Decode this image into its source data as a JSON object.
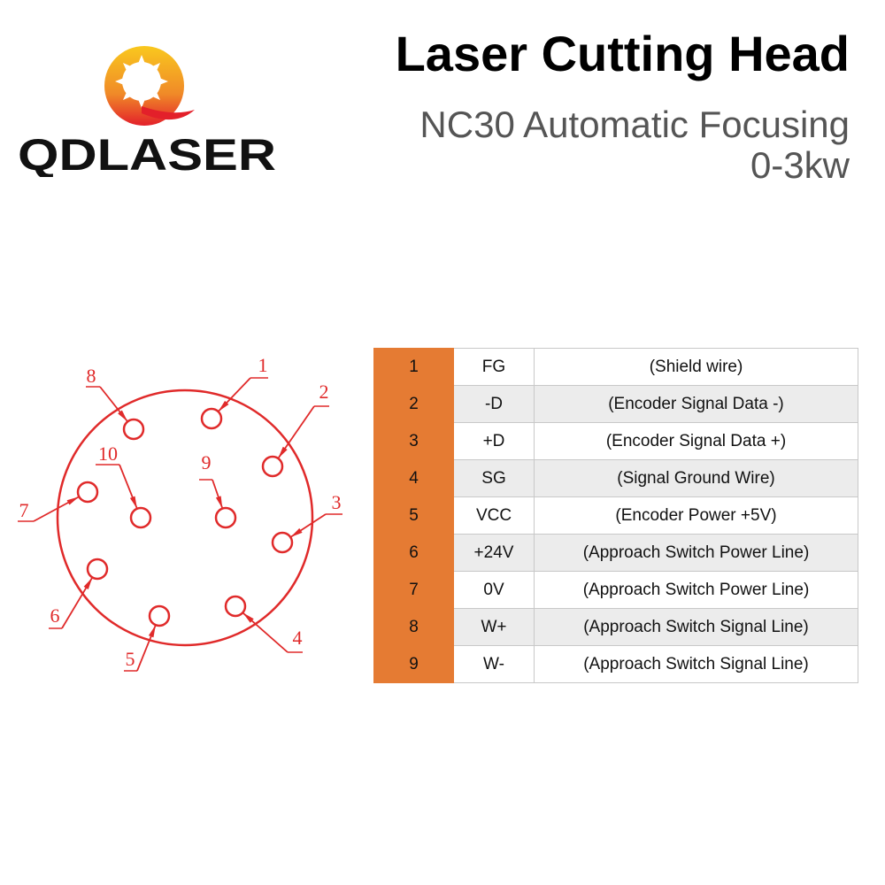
{
  "brand": {
    "name": "QDLASER",
    "colors": {
      "orange": "#f5a623",
      "red": "#e3202a",
      "black": "#111111"
    }
  },
  "header": {
    "title": "Laser Cutting Head",
    "subtitle_line1": "NC30 Automatic Focusing",
    "subtitle_line2": "0-3kw"
  },
  "diagram": {
    "color": "#e02a2a",
    "pins": [
      "1",
      "2",
      "3",
      "4",
      "5",
      "6",
      "7",
      "8",
      "9",
      "10"
    ]
  },
  "table": {
    "accent": "#e57b33",
    "rows": [
      {
        "pin": "1",
        "signal": "FG",
        "description": "(Shield wire)"
      },
      {
        "pin": "2",
        "signal": "-D",
        "description": "(Encoder Signal Data -)"
      },
      {
        "pin": "3",
        "signal": "+D",
        "description": "(Encoder Signal Data +)"
      },
      {
        "pin": "4",
        "signal": "SG",
        "description": "(Signal Ground Wire)"
      },
      {
        "pin": "5",
        "signal": "VCC",
        "description": "(Encoder Power +5V)"
      },
      {
        "pin": "6",
        "signal": "+24V",
        "description": "(Approach Switch Power Line)"
      },
      {
        "pin": "7",
        "signal": "0V",
        "description": "(Approach Switch Power Line)"
      },
      {
        "pin": "8",
        "signal": "W+",
        "description": "(Approach Switch Signal Line)"
      },
      {
        "pin": "9",
        "signal": "W-",
        "description": "(Approach Switch Signal Line)"
      }
    ]
  }
}
